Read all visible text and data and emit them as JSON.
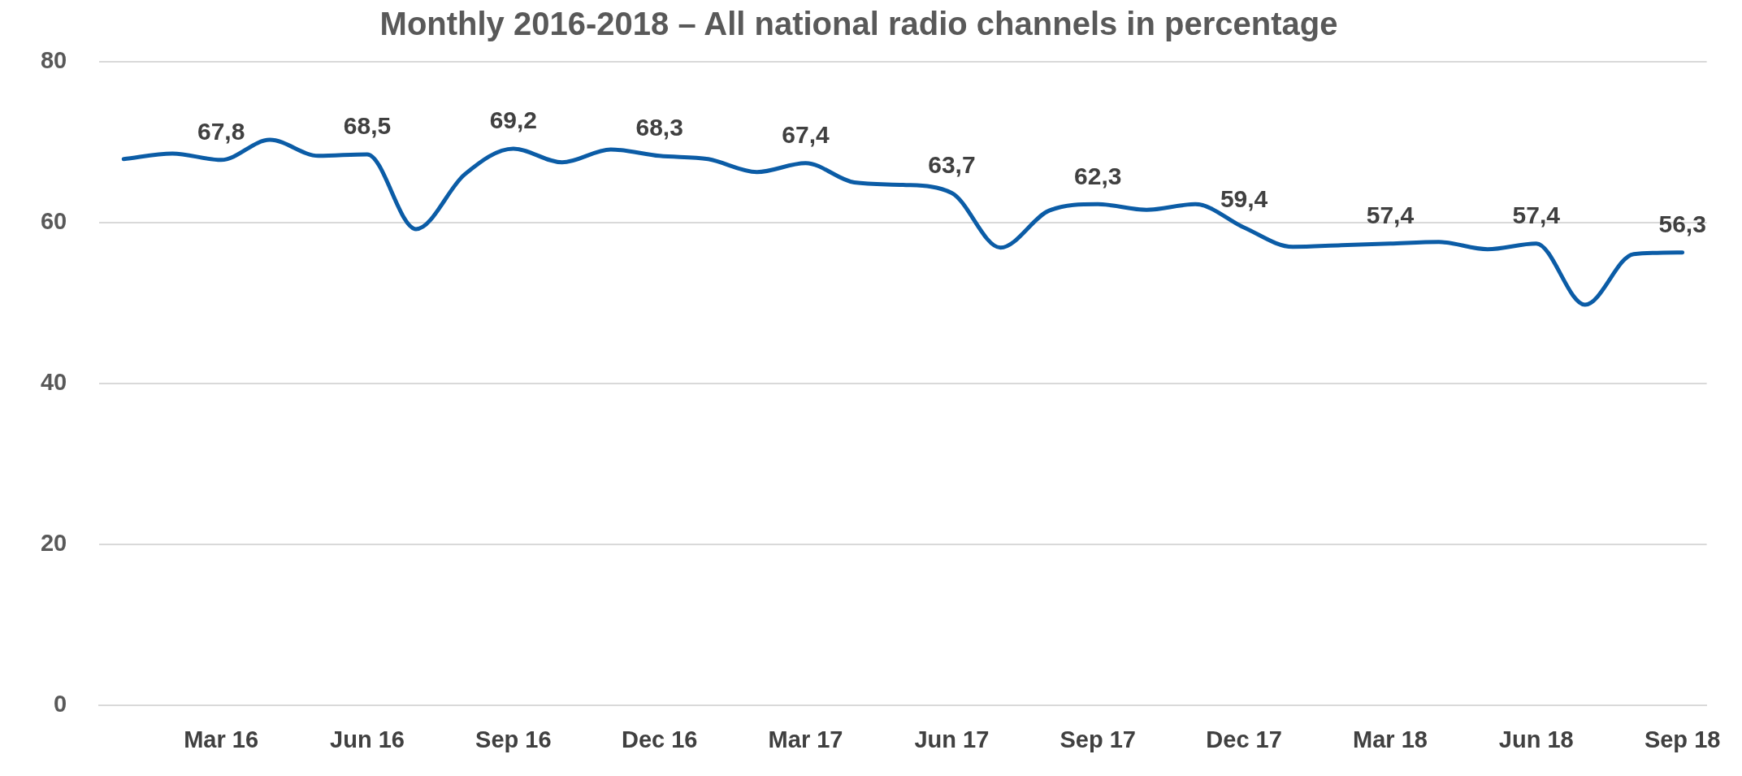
{
  "chart_data": {
    "type": "line",
    "title": "Monthly 2016-2018 – All national radio channels in percentage",
    "categories": [
      null,
      null,
      "Mar 16",
      null,
      null,
      "Jun 16",
      null,
      null,
      "Sep 16",
      null,
      null,
      "Dec 16",
      null,
      null,
      "Mar 17",
      null,
      null,
      "Jun 17",
      null,
      null,
      "Sep 17",
      null,
      null,
      "Dec 17",
      null,
      null,
      "Mar 18",
      null,
      null,
      "Jun 18",
      null,
      null,
      "Sep 18"
    ],
    "series": [
      {
        "color": "#0b5ca6",
        "values": [
          67.9,
          68.6,
          67.8,
          70.3,
          68.3,
          68.5,
          59.2,
          66.0,
          69.2,
          67.5,
          69.1,
          68.3,
          67.9,
          66.3,
          67.4,
          65.0,
          64.7,
          63.7,
          56.9,
          61.5,
          62.3,
          61.6,
          62.3,
          59.4,
          57.0,
          57.2,
          57.4,
          57.6,
          56.7,
          57.4,
          49.8,
          56.1,
          56.3
        ],
        "value_labels": [
          null,
          null,
          "67,8",
          null,
          null,
          "68,5",
          null,
          null,
          "69,2",
          null,
          null,
          "68,3",
          null,
          null,
          "67,4",
          null,
          null,
          "63,7",
          null,
          null,
          "62,3",
          null,
          null,
          "59,4",
          null,
          null,
          "57,4",
          null,
          null,
          "57,4",
          null,
          null,
          "56,3"
        ]
      }
    ],
    "ylim": [
      0,
      80
    ],
    "yticks": [
      0,
      20,
      40,
      60,
      80
    ],
    "grid": "y",
    "legend": false,
    "marker": "none",
    "line_style": "solid"
  }
}
